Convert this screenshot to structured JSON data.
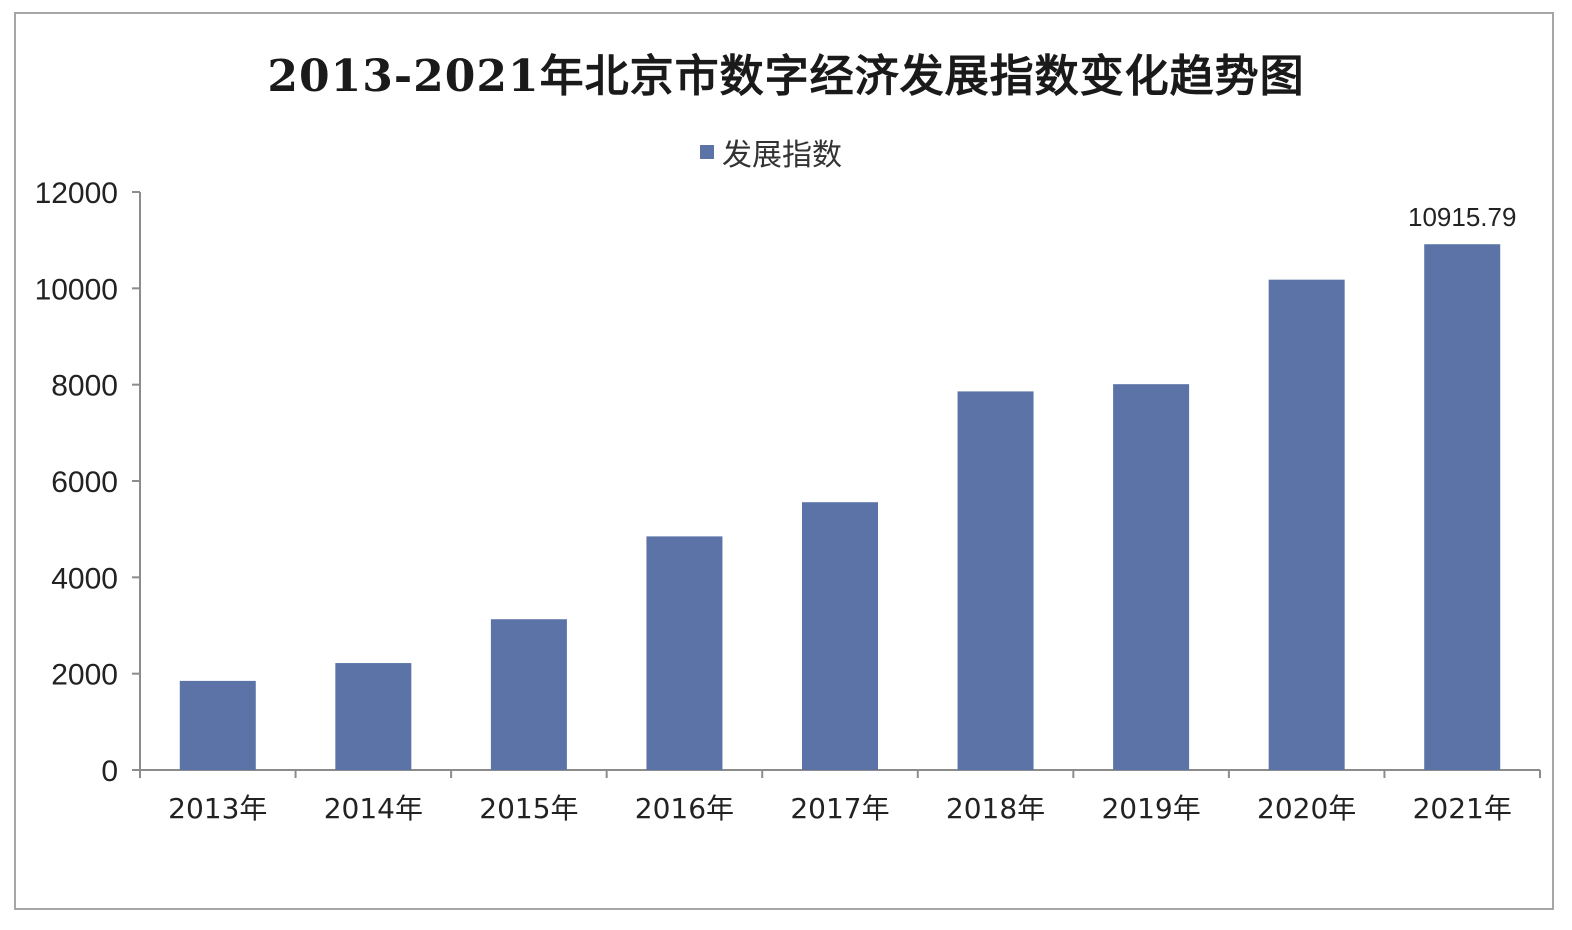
{
  "chart_data": {
    "type": "bar",
    "title": "2013-2021年北京市数字经济发展指数变化趋势图",
    "xlabel": "",
    "ylabel": "",
    "categories": [
      "2013年",
      "2014年",
      "2015年",
      "2016年",
      "2017年",
      "2018年",
      "2019年",
      "2020年",
      "2021年"
    ],
    "series": [
      {
        "name": "发展指数",
        "values": [
          1850,
          2220,
          3130,
          4850,
          5560,
          7860,
          8010,
          10180,
          10915.79
        ],
        "color": "#5b73a6"
      }
    ],
    "data_labels": [
      {
        "category": "2021年",
        "text": "10915.79"
      }
    ],
    "ylim": [
      0,
      12000
    ],
    "yticks": [
      0,
      2000,
      4000,
      6000,
      8000,
      10000,
      12000
    ],
    "grid": false,
    "legend": "top-center"
  }
}
